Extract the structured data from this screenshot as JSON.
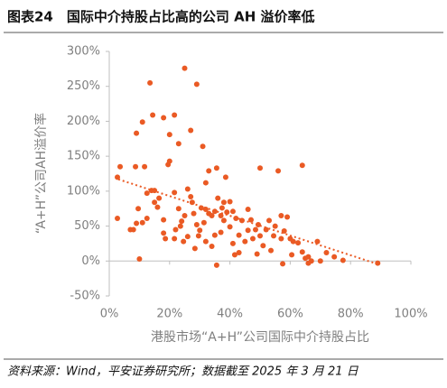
{
  "header": {
    "title": "图表24　国际中介持股占比高的公司 AH 溢价率低"
  },
  "chart_data": {
    "type": "scatter",
    "x_label": "港股市场“A+H”公司国际中介持股占比",
    "y_label": "“A+H”公司AH溢价率",
    "color": "#ea5a24",
    "x": [
      3.6,
      2.7,
      8.7,
      11.7,
      9,
      11,
      13.5,
      14.4,
      18,
      21.6,
      25,
      29,
      20,
      27,
      23,
      20,
      19.5,
      31,
      35.6,
      33,
      32,
      38.6,
      50,
      56,
      64,
      2.7,
      7,
      8,
      9,
      11,
      9.6,
      12.5,
      14,
      15,
      16.5,
      18,
      18,
      18.6,
      22,
      21.6,
      23,
      24,
      25,
      26,
      27,
      27.5,
      28,
      29,
      29.6,
      30.5,
      31.4,
      32,
      33,
      34,
      34,
      35,
      36,
      37,
      37.4,
      38,
      39,
      40,
      41,
      41,
      42,
      43,
      44,
      45,
      46,
      47,
      47.6,
      48.5,
      49.4,
      50,
      51,
      52,
      53,
      54.5,
      55,
      57,
      58,
      59,
      60,
      61,
      62.6,
      64,
      65,
      66,
      67,
      69,
      70,
      72,
      74.6,
      77.5,
      89,
      35.6,
      57.5,
      41.6,
      28.4,
      32,
      23.6,
      10,
      12.5,
      24.6,
      37,
      53.6,
      49,
      60.5,
      66,
      40,
      30,
      26,
      35,
      43,
      21.6,
      15,
      16,
      38,
      46,
      57
    ],
    "values": [
      135,
      120,
      135,
      135,
      183,
      199,
      255,
      209,
      205,
      209,
      276,
      253,
      181,
      187,
      168,
      143,
      138,
      164,
      133,
      129,
      112,
      120,
      133,
      129,
      137,
      61,
      45,
      45,
      54,
      55,
      75,
      97,
      101,
      101,
      90,
      59,
      40,
      32,
      45,
      32,
      75,
      57,
      65,
      103,
      92,
      84,
      68,
      52,
      36,
      76,
      55,
      74,
      68,
      65,
      21,
      71,
      90,
      65,
      76,
      58,
      70,
      49,
      71,
      25,
      61,
      37,
      58,
      28,
      44,
      59,
      32,
      45,
      52,
      36,
      22,
      45,
      58,
      36,
      50,
      32,
      43,
      63,
      32,
      28,
      26,
      13,
      4,
      6,
      0,
      28,
      0,
      12,
      6,
      1,
      -3,
      -6,
      -4,
      9,
      18,
      28,
      50,
      3,
      61,
      28,
      41,
      15,
      10,
      9,
      -3,
      85,
      44,
      35,
      37,
      12,
      98,
      84,
      77,
      84,
      74,
      65
    ],
    "trendline": {
      "x": [
        3,
        88
      ],
      "values": [
        117,
        -3
      ]
    },
    "xlim": [
      0,
      100
    ],
    "xticks": [
      {
        "value": 0,
        "label": "0%"
      },
      {
        "value": 20,
        "label": "20%"
      },
      {
        "value": 40,
        "label": "40%"
      },
      {
        "value": 60,
        "label": "60%"
      },
      {
        "value": 80,
        "label": "80%"
      },
      {
        "value": 100,
        "label": "100%"
      }
    ],
    "ylim": [
      -50,
      300
    ],
    "yticks": [
      {
        "value": -50,
        "label": "-50%"
      },
      {
        "value": 0,
        "label": "0%"
      },
      {
        "value": 50,
        "label": "50%"
      },
      {
        "value": 100,
        "label": "100%"
      },
      {
        "value": 150,
        "label": "150%"
      },
      {
        "value": 200,
        "label": "200%"
      },
      {
        "value": 250,
        "label": "250%"
      },
      {
        "value": 300,
        "label": "300%"
      }
    ]
  },
  "footer": {
    "source": "资料来源：Wind，平安证券研究所；数据截至 2025 年 3 月 21 日"
  }
}
